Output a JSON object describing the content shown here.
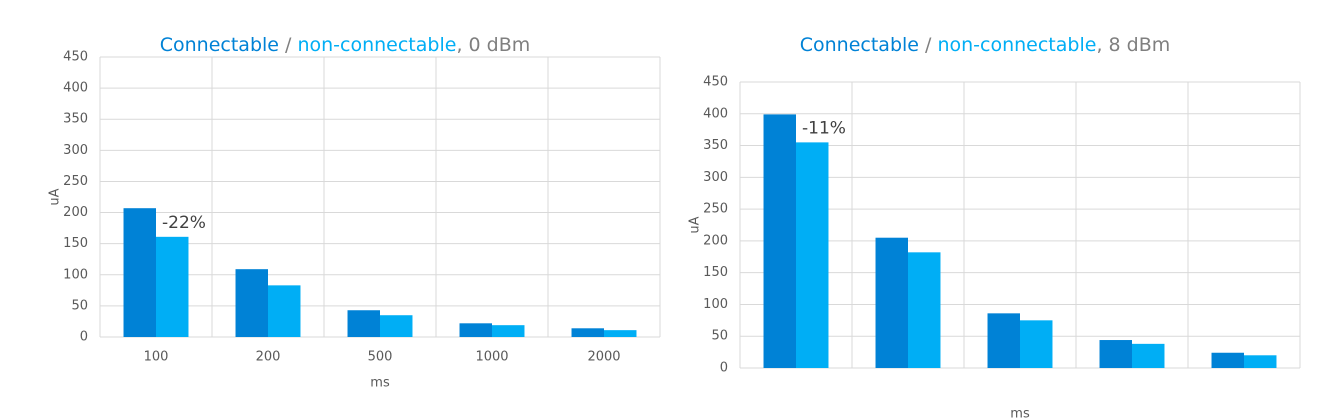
{
  "chart_data": [
    {
      "type": "bar",
      "title": [
        "Connectable",
        " / ",
        "non-connectable",
        ", 0 dBm"
      ],
      "categories": [
        "100",
        "200",
        "500",
        "1000",
        "2000"
      ],
      "series": [
        {
          "name": "Connectable",
          "color": "#0082d6",
          "values": [
            207,
            109,
            43,
            22,
            14
          ]
        },
        {
          "name": "non-connectable",
          "color": "#00aef5",
          "values": [
            161,
            83,
            35,
            19,
            11
          ]
        }
      ],
      "annotation": "-22%",
      "xlabel": "ms",
      "ylabel": "uA",
      "ylim": [
        0,
        450
      ],
      "yticks": [
        0,
        50,
        100,
        150,
        200,
        250,
        300,
        350,
        400,
        450
      ],
      "grid": true
    },
    {
      "type": "bar",
      "title": [
        "Connectable",
        " / ",
        "non-connectable",
        ", 8 dBm"
      ],
      "categories": [
        null,
        null,
        null,
        null,
        null
      ],
      "series": [
        {
          "name": "Connectable",
          "color": "#0082d6",
          "values": [
            399,
            205,
            86,
            44,
            24
          ]
        },
        {
          "name": "non-connectable",
          "color": "#00aef5",
          "values": [
            355,
            182,
            75,
            38,
            20
          ]
        }
      ],
      "annotation": "-11%",
      "xlabel": "ms",
      "ylabel": "uA",
      "ylim": [
        0,
        450
      ],
      "yticks": [
        0,
        50,
        100,
        150,
        200,
        250,
        300,
        350,
        400,
        450
      ],
      "grid": true
    }
  ]
}
